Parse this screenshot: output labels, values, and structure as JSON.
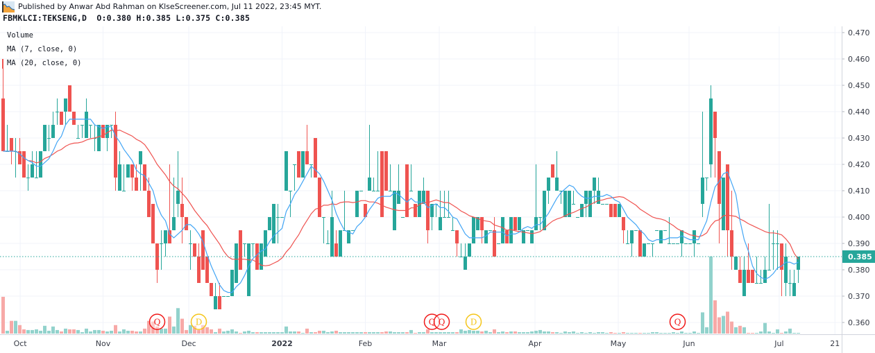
{
  "header": {
    "published": "Published by Anwar Abd Rahman on KlseScreener.com, Jul 11 2022, 23:45 MYT.",
    "symbol_line": "FBMKLCI:TEKSENG,D  O:0.380 H:0.385 L:0.375 C:0.385"
  },
  "legend": {
    "volume": "Volume",
    "ma7": "MA (7, close, 0)",
    "ma20": "MA (20, close, 0)"
  },
  "colors": {
    "up": "#26a69a",
    "down": "#ef5350",
    "volume_up": "#92d2cc",
    "volume_down": "#f7a9a7",
    "ma7": "#42a5f5",
    "ma20": "#ef5350",
    "marker_q": "#f01818",
    "marker_d": "#f5c518"
  },
  "chart_data": {
    "type": "candlestick",
    "title": "",
    "ylim": [
      0.356,
      0.472
    ],
    "y_ticks": [
      "0.470",
      "0.460",
      "0.450",
      "0.440",
      "0.430",
      "0.420",
      "0.410",
      "0.400",
      "0.390",
      "0.380",
      "0.370",
      "0.360"
    ],
    "x_ticks": [
      "Oct",
      "Nov",
      "Dec",
      "2022",
      "Feb",
      "Mar",
      "Apr",
      "May",
      "Jun",
      "Jul",
      "21"
    ],
    "last_price": "0.385",
    "grid": true,
    "indicators": [
      "MA 7 close",
      "MA 20 close",
      "Volume"
    ],
    "markers": [
      {
        "label": "Q",
        "kind": "q"
      },
      {
        "label": "D",
        "kind": "d"
      },
      {
        "label": "Q",
        "kind": "q"
      },
      {
        "label": "Q",
        "kind": "q"
      },
      {
        "label": "D",
        "kind": "d"
      },
      {
        "label": "Q",
        "kind": "q"
      }
    ],
    "ohlcv_columns": [
      "open",
      "high",
      "low",
      "close",
      "volume_relative"
    ],
    "bars": [
      [
        0.445,
        0.46,
        0.425,
        0.425,
        52
      ],
      [
        0.425,
        0.435,
        0.425,
        0.425,
        4
      ],
      [
        0.43,
        0.43,
        0.42,
        0.425,
        18
      ],
      [
        0.425,
        0.43,
        0.415,
        0.425,
        18
      ],
      [
        0.425,
        0.43,
        0.42,
        0.42,
        12
      ],
      [
        0.425,
        0.425,
        0.415,
        0.415,
        6
      ],
      [
        0.415,
        0.42,
        0.41,
        0.415,
        5
      ],
      [
        0.415,
        0.425,
        0.415,
        0.42,
        5
      ],
      [
        0.415,
        0.425,
        0.415,
        0.415,
        6
      ],
      [
        0.415,
        0.425,
        0.415,
        0.425,
        4
      ],
      [
        0.425,
        0.435,
        0.425,
        0.435,
        11
      ],
      [
        0.43,
        0.435,
        0.425,
        0.43,
        4
      ],
      [
        0.43,
        0.44,
        0.43,
        0.435,
        10
      ],
      [
        0.44,
        0.445,
        0.435,
        0.44,
        5
      ],
      [
        0.44,
        0.44,
        0.435,
        0.435,
        3
      ],
      [
        0.44,
        0.445,
        0.435,
        0.445,
        7
      ],
      [
        0.45,
        0.45,
        0.44,
        0.44,
        6
      ],
      [
        0.44,
        0.44,
        0.435,
        0.435,
        6
      ],
      [
        0.43,
        0.435,
        0.43,
        0.43,
        5
      ],
      [
        0.435,
        0.435,
        0.43,
        0.435,
        2
      ],
      [
        0.43,
        0.445,
        0.43,
        0.44,
        7
      ],
      [
        0.435,
        0.435,
        0.43,
        0.435,
        3
      ],
      [
        0.43,
        0.435,
        0.425,
        0.43,
        5
      ],
      [
        0.425,
        0.435,
        0.425,
        0.435,
        5
      ],
      [
        0.435,
        0.435,
        0.43,
        0.43,
        4
      ],
      [
        0.43,
        0.435,
        0.425,
        0.435,
        3
      ],
      [
        0.435,
        0.435,
        0.43,
        0.435,
        4
      ],
      [
        0.435,
        0.44,
        0.41,
        0.415,
        12
      ],
      [
        0.41,
        0.425,
        0.41,
        0.42,
        3
      ],
      [
        0.41,
        0.42,
        0.41,
        0.41,
        6
      ],
      [
        0.415,
        0.42,
        0.415,
        0.42,
        4
      ],
      [
        0.42,
        0.42,
        0.41,
        0.415,
        4
      ],
      [
        0.415,
        0.42,
        0.41,
        0.41,
        3
      ],
      [
        0.42,
        0.425,
        0.41,
        0.425,
        3
      ],
      [
        0.42,
        0.42,
        0.41,
        0.41,
        7
      ],
      [
        0.41,
        0.415,
        0.4,
        0.4,
        18
      ],
      [
        0.405,
        0.405,
        0.39,
        0.39,
        17
      ],
      [
        0.39,
        0.39,
        0.375,
        0.38,
        10
      ],
      [
        0.39,
        0.395,
        0.38,
        0.39,
        7
      ],
      [
        0.39,
        0.395,
        0.385,
        0.395,
        7
      ],
      [
        0.395,
        0.42,
        0.39,
        0.39,
        24
      ],
      [
        0.395,
        0.415,
        0.395,
        0.4,
        10
      ],
      [
        0.405,
        0.425,
        0.4,
        0.41,
        36
      ],
      [
        0.405,
        0.415,
        0.39,
        0.4,
        21
      ],
      [
        0.4,
        0.4,
        0.395,
        0.395,
        5
      ],
      [
        0.39,
        0.395,
        0.38,
        0.39,
        12
      ],
      [
        0.39,
        0.39,
        0.385,
        0.385,
        11
      ],
      [
        0.385,
        0.39,
        0.375,
        0.375,
        5
      ],
      [
        0.395,
        0.395,
        0.38,
        0.38,
        12
      ],
      [
        0.385,
        0.385,
        0.375,
        0.375,
        9
      ],
      [
        0.375,
        0.375,
        0.37,
        0.37,
        6
      ],
      [
        0.365,
        0.375,
        0.365,
        0.37,
        2
      ],
      [
        0.37,
        0.375,
        0.365,
        0.365,
        7
      ],
      [
        0.37,
        0.37,
        0.37,
        0.37,
        3
      ],
      [
        0.37,
        0.37,
        0.37,
        0.37,
        4
      ],
      [
        0.37,
        0.38,
        0.37,
        0.38,
        6
      ],
      [
        0.375,
        0.39,
        0.375,
        0.39,
        3
      ],
      [
        0.395,
        0.395,
        0.38,
        0.38,
        1
      ],
      [
        0.39,
        0.39,
        0.385,
        0.39,
        3
      ],
      [
        0.37,
        0.39,
        0.37,
        0.39,
        4
      ],
      [
        0.39,
        0.39,
        0.385,
        0.39,
        2
      ],
      [
        0.39,
        0.39,
        0.38,
        0.38,
        2
      ],
      [
        0.38,
        0.39,
        0.38,
        0.39,
        2
      ],
      [
        0.385,
        0.395,
        0.385,
        0.395,
        2
      ],
      [
        0.395,
        0.4,
        0.395,
        0.4,
        2
      ],
      [
        0.39,
        0.405,
        0.39,
        0.405,
        2
      ],
      [
        0.4,
        0.405,
        0.39,
        0.4,
        2
      ],
      [
        0.4,
        0.4,
        0.4,
        0.4,
        2
      ],
      [
        0.41,
        0.425,
        0.41,
        0.425,
        10
      ],
      [
        0.41,
        0.41,
        0.4,
        0.41,
        3
      ],
      [
        0.42,
        0.42,
        0.41,
        0.42,
        3
      ],
      [
        0.425,
        0.425,
        0.415,
        0.415,
        3
      ],
      [
        0.415,
        0.425,
        0.415,
        0.425,
        1
      ],
      [
        0.425,
        0.435,
        0.42,
        0.42,
        7
      ],
      [
        0.42,
        0.42,
        0.415,
        0.42,
        2
      ],
      [
        0.43,
        0.43,
        0.415,
        0.415,
        2
      ],
      [
        0.415,
        0.415,
        0.4,
        0.4,
        4
      ],
      [
        0.4,
        0.4,
        0.39,
        0.4,
        4
      ],
      [
        0.39,
        0.395,
        0.39,
        0.39,
        2
      ],
      [
        0.385,
        0.41,
        0.385,
        0.4,
        3
      ],
      [
        0.39,
        0.395,
        0.385,
        0.385,
        4
      ],
      [
        0.385,
        0.395,
        0.385,
        0.395,
        2
      ],
      [
        0.395,
        0.41,
        0.395,
        0.395,
        2
      ],
      [
        0.39,
        0.395,
        0.39,
        0.395,
        2
      ],
      [
        0.395,
        0.395,
        0.395,
        0.395,
        2
      ],
      [
        0.4,
        0.41,
        0.4,
        0.41,
        2
      ],
      [
        0.41,
        0.41,
        0.41,
        0.41,
        2
      ],
      [
        0.405,
        0.405,
        0.4,
        0.4,
        2
      ],
      [
        0.41,
        0.435,
        0.41,
        0.415,
        2
      ],
      [
        0.41,
        0.415,
        0.41,
        0.41,
        2
      ],
      [
        0.41,
        0.425,
        0.41,
        0.41,
        2
      ],
      [
        0.425,
        0.425,
        0.4,
        0.4,
        2
      ],
      [
        0.425,
        0.425,
        0.41,
        0.41,
        3
      ],
      [
        0.41,
        0.42,
        0.41,
        0.41,
        3
      ],
      [
        0.395,
        0.41,
        0.395,
        0.41,
        2
      ],
      [
        0.405,
        0.42,
        0.405,
        0.41,
        2
      ],
      [
        0.4,
        0.4,
        0.4,
        0.4,
        2
      ],
      [
        0.42,
        0.42,
        0.4,
        0.4,
        2
      ],
      [
        0.41,
        0.42,
        0.41,
        0.41,
        5
      ],
      [
        0.405,
        0.405,
        0.4,
        0.4,
        1
      ],
      [
        0.4,
        0.41,
        0.4,
        0.41,
        2
      ],
      [
        0.405,
        0.415,
        0.405,
        0.41,
        2
      ],
      [
        0.41,
        0.41,
        0.39,
        0.395,
        6
      ],
      [
        0.4,
        0.405,
        0.395,
        0.405,
        2
      ],
      [
        0.405,
        0.405,
        0.4,
        0.405,
        2
      ],
      [
        0.395,
        0.41,
        0.395,
        0.4,
        2
      ],
      [
        0.4,
        0.41,
        0.4,
        0.4,
        2
      ],
      [
        0.4,
        0.41,
        0.4,
        0.4,
        2
      ],
      [
        0.395,
        0.4,
        0.395,
        0.395,
        2
      ],
      [
        0.395,
        0.395,
        0.385,
        0.39,
        2
      ],
      [
        0.385,
        0.39,
        0.385,
        0.385,
        6
      ],
      [
        0.38,
        0.39,
        0.38,
        0.385,
        4
      ],
      [
        0.385,
        0.39,
        0.385,
        0.39,
        5
      ],
      [
        0.39,
        0.4,
        0.39,
        0.4,
        4
      ],
      [
        0.395,
        0.4,
        0.395,
        0.4,
        4
      ],
      [
        0.4,
        0.4,
        0.39,
        0.395,
        3
      ],
      [
        0.39,
        0.395,
        0.39,
        0.395,
        4
      ],
      [
        0.395,
        0.395,
        0.395,
        0.395,
        2
      ],
      [
        0.395,
        0.4,
        0.385,
        0.385,
        6
      ],
      [
        0.39,
        0.39,
        0.39,
        0.39,
        2
      ],
      [
        0.39,
        0.4,
        0.39,
        0.4,
        3
      ],
      [
        0.395,
        0.395,
        0.39,
        0.39,
        2
      ],
      [
        0.39,
        0.4,
        0.39,
        0.4,
        3
      ],
      [
        0.4,
        0.4,
        0.395,
        0.395,
        3
      ],
      [
        0.395,
        0.4,
        0.395,
        0.4,
        2
      ],
      [
        0.39,
        0.395,
        0.39,
        0.395,
        2
      ],
      [
        0.395,
        0.395,
        0.395,
        0.395,
        2
      ],
      [
        0.39,
        0.395,
        0.39,
        0.395,
        3
      ],
      [
        0.395,
        0.42,
        0.395,
        0.4,
        4
      ],
      [
        0.4,
        0.4,
        0.395,
        0.4,
        5
      ],
      [
        0.395,
        0.41,
        0.395,
        0.41,
        3
      ],
      [
        0.41,
        0.415,
        0.405,
        0.415,
        3
      ],
      [
        0.42,
        0.42,
        0.415,
        0.415,
        2
      ],
      [
        0.41,
        0.425,
        0.41,
        0.415,
        2
      ],
      [
        0.41,
        0.41,
        0.405,
        0.41,
        1
      ],
      [
        0.4,
        0.41,
        0.4,
        0.41,
        3
      ],
      [
        0.4,
        0.41,
        0.4,
        0.41,
        2
      ],
      [
        0.405,
        0.41,
        0.405,
        0.405,
        3
      ],
      [
        0.4,
        0.4,
        0.4,
        0.4,
        1
      ],
      [
        0.4,
        0.405,
        0.4,
        0.405,
        2
      ],
      [
        0.405,
        0.41,
        0.4,
        0.41,
        1
      ],
      [
        0.4,
        0.41,
        0.4,
        0.41,
        2
      ],
      [
        0.41,
        0.415,
        0.405,
        0.415,
        1
      ],
      [
        0.405,
        0.415,
        0.405,
        0.41,
        2
      ],
      [
        0.405,
        0.405,
        0.405,
        0.405,
        2
      ],
      [
        0.405,
        0.405,
        0.405,
        0.405,
        0.5
      ],
      [
        0.405,
        0.405,
        0.4,
        0.4,
        2
      ],
      [
        0.405,
        0.405,
        0.4,
        0.4,
        1
      ],
      [
        0.4,
        0.405,
        0.4,
        0.405,
        1
      ],
      [
        0.4,
        0.4,
        0.39,
        0.395,
        2
      ],
      [
        0.39,
        0.395,
        0.39,
        0.39,
        1
      ],
      [
        0.39,
        0.395,
        0.385,
        0.395,
        1
      ],
      [
        0.395,
        0.395,
        0.395,
        0.395,
        1
      ],
      [
        0.395,
        0.395,
        0.385,
        0.385,
        1
      ],
      [
        0.385,
        0.39,
        0.385,
        0.39,
        1
      ],
      [
        0.39,
        0.39,
        0.39,
        0.39,
        1
      ],
      [
        0.39,
        0.39,
        0.385,
        0.39,
        2
      ],
      [
        0.395,
        0.395,
        0.395,
        0.395,
        2
      ],
      [
        0.39,
        0.395,
        0.39,
        0.395,
        0.5
      ],
      [
        0.395,
        0.395,
        0.395,
        0.395,
        0.5
      ],
      [
        0.39,
        0.4,
        0.39,
        0.39,
        0.5
      ],
      [
        0.39,
        0.39,
        0.39,
        0.39,
        2
      ],
      [
        0.39,
        0.39,
        0.39,
        0.39,
        1
      ],
      [
        0.39,
        0.395,
        0.385,
        0.395,
        3
      ],
      [
        0.39,
        0.39,
        0.39,
        0.39,
        1
      ],
      [
        0.39,
        0.39,
        0.39,
        0.39,
        1
      ],
      [
        0.39,
        0.395,
        0.385,
        0.395,
        3
      ],
      [
        0.39,
        0.39,
        0.39,
        0.39,
        0.5
      ],
      [
        0.405,
        0.44,
        0.4,
        0.415,
        30
      ],
      [
        0.415,
        0.415,
        0.41,
        0.415,
        9
      ],
      [
        0.42,
        0.45,
        0.415,
        0.445,
        109
      ],
      [
        0.44,
        0.44,
        0.415,
        0.43,
        47
      ],
      [
        0.425,
        0.425,
        0.39,
        0.405,
        23
      ],
      [
        0.395,
        0.415,
        0.395,
        0.415,
        25
      ],
      [
        0.42,
        0.42,
        0.385,
        0.395,
        31
      ],
      [
        0.395,
        0.41,
        0.38,
        0.385,
        17
      ],
      [
        0.38,
        0.385,
        0.38,
        0.385,
        9
      ],
      [
        0.38,
        0.385,
        0.375,
        0.375,
        11
      ],
      [
        0.37,
        0.385,
        0.37,
        0.38,
        9
      ],
      [
        0.38,
        0.39,
        0.375,
        0.375,
        1
      ],
      [
        0.38,
        0.38,
        0.375,
        0.375,
        1
      ],
      [
        0.375,
        0.385,
        0.375,
        0.375,
        1
      ],
      [
        0.375,
        0.38,
        0.375,
        0.375,
        3
      ],
      [
        0.375,
        0.385,
        0.375,
        0.38,
        15
      ],
      [
        0.38,
        0.405,
        0.38,
        0.38,
        3
      ],
      [
        0.39,
        0.395,
        0.38,
        0.39,
        1
      ],
      [
        0.39,
        0.395,
        0.38,
        0.39,
        6
      ],
      [
        0.39,
        0.39,
        0.37,
        0.38,
        1
      ],
      [
        0.375,
        0.39,
        0.37,
        0.385,
        3
      ],
      [
        0.375,
        0.38,
        0.37,
        0.375,
        7
      ],
      [
        0.37,
        0.38,
        0.37,
        0.375,
        1
      ],
      [
        0.38,
        0.385,
        0.375,
        0.385,
        1
      ]
    ]
  }
}
